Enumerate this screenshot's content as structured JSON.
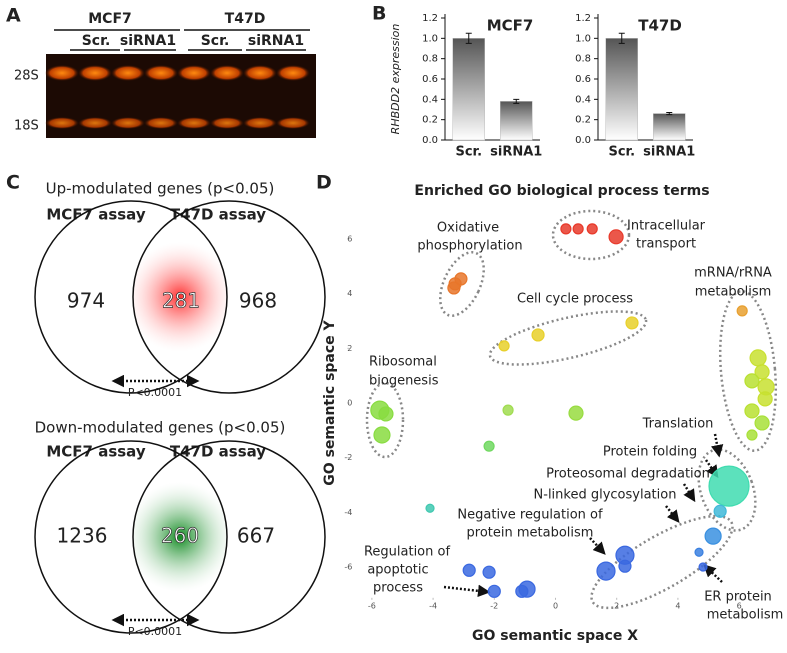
{
  "panels": {
    "letters": [
      "A",
      "B",
      "C",
      "D"
    ],
    "gel": {
      "groups": [
        "MCF7",
        "T47D"
      ],
      "lanes": [
        "Scr.",
        "siRNA1",
        "Scr.",
        "siRNA1"
      ],
      "bands": [
        "28S",
        "18S"
      ]
    },
    "venn": [
      {
        "title": "Up-modulated genes  (p<0.05)",
        "left": "MCF7 assay",
        "right": "T47D assay",
        "counts": [
          974,
          281,
          968
        ],
        "p": "P<0.0001"
      },
      {
        "title": "Down-modulated genes (p<0.05)",
        "left": "MCF7 assay",
        "right": "T47D assay",
        "counts": [
          1236,
          260,
          667
        ],
        "p": "P<0.0001"
      }
    ]
  },
  "chart_data": [
    {
      "type": "bar",
      "title": "MCF7",
      "ylabel": "RHBDD2 expression",
      "categories": [
        "Scr.",
        "siRNA1"
      ],
      "values": [
        1.0,
        0.38
      ],
      "errors": [
        0.05,
        0.02
      ],
      "ylim": [
        0,
        1.2
      ],
      "yticks": [
        {
          "value": 0,
          "label": "0.0"
        },
        0.2,
        0.4,
        0.6,
        0.8,
        {
          "value": 1,
          "label": "1.0"
        },
        1.2
      ]
    },
    {
      "type": "bar",
      "title": "T47D",
      "categories": [
        "Scr.",
        "siRNA1"
      ],
      "values": [
        1.0,
        0.26
      ],
      "errors": [
        0.05,
        0.01
      ],
      "ylim": [
        0,
        1.2
      ],
      "yticks": [
        {
          "value": 0,
          "label": "0.0"
        },
        0.2,
        0.4,
        0.6,
        0.8,
        {
          "value": 1,
          "label": "1.0"
        },
        1.2
      ]
    },
    {
      "type": "scatter",
      "title": "Enriched GO biological process terms",
      "xlabel": "GO semantic space X",
      "ylabel": "GO semantic space Y",
      "xlim": [
        -6.8,
        7.3
      ],
      "ylim": [
        -7.2,
        7.2
      ],
      "xticks": [
        -6,
        -4,
        -2,
        0,
        2,
        4,
        6
      ],
      "yticks": [
        -6,
        -4,
        -2,
        0,
        2,
        4,
        6
      ],
      "x": [
        0.34,
        0.74,
        1.2,
        1.98,
        -3.28,
        -3.09,
        -3.32,
        6.1,
        -1.68,
        -0.57,
        2.5,
        6.62,
        6.75,
        6.88,
        6.85,
        6.42,
        6.42,
        6.75,
        6.42,
        -5.74,
        -5.54,
        -5.67,
        -1.55,
        0.67,
        -2.17,
        -4.1,
        5.67,
        5.38,
        5.15,
        4.69,
        4.82,
        2.27,
        2.27,
        1.65,
        -2.82,
        -2.17,
        -2.0,
        -0.93,
        -1.1
      ],
      "values": [
        6.37,
        6.37,
        6.37,
        6.08,
        4.36,
        4.54,
        4.21,
        3.37,
        2.09,
        2.49,
        2.93,
        1.65,
        1.14,
        0.59,
        0.15,
        0.81,
        -0.29,
        -0.73,
        -1.17,
        -0.26,
        -0.4,
        -1.17,
        -0.26,
        -0.37,
        -1.58,
        -3.85,
        -3.04,
        -3.96,
        -4.87,
        -5.46,
        -6.0,
        -5.57,
        -5.97,
        -6.15,
        -6.12,
        -6.19,
        -6.89,
        -6.81,
        -6.89
      ],
      "sizes": [
        5,
        5,
        5,
        7,
        6,
        6,
        6,
        5,
        5,
        6,
        6,
        8,
        7,
        8,
        7,
        7,
        7,
        7,
        5,
        9,
        7,
        8,
        5,
        7,
        5,
        4,
        20,
        6,
        8,
        4,
        4,
        9,
        6,
        9,
        6,
        6,
        6,
        8,
        6
      ],
      "colors": [
        "#e8392a",
        "#e8392a",
        "#e8392a",
        "#e8392a",
        "#e8762a",
        "#e8762a",
        "#e8762a",
        "#e8a030",
        "#e8d02a",
        "#e8d02a",
        "#e8d02a",
        "#c8e030",
        "#c8e030",
        "#c8e030",
        "#c8e030",
        "#b8e030",
        "#b8e030",
        "#a8e038",
        "#a8e038",
        "#88dc40",
        "#88dc40",
        "#88dc40",
        "#a0dc50",
        "#98dc40",
        "#70d860",
        "#40c8b0",
        "#40dcb0",
        "#40b8d8",
        "#3a90e0",
        "#3a80e0",
        "#3a68e0",
        "#3a68e0",
        "#3a68e0",
        "#3a68e0",
        "#3a68e0",
        "#3a68e0",
        "#3a68e0",
        "#3a68e0",
        "#3a68e0"
      ],
      "annotations": [
        "Oxidative",
        "phosphorylation",
        "Intracellular",
        "transport",
        "mRNA/rRNA",
        "metabolism",
        "Cell cycle process",
        "Ribosomal",
        "biogenesis",
        "Translation",
        "Protein folding",
        "Proteosomal degradation",
        "N-linked glycosylation",
        "Negative regulation of",
        "protein metabolism",
        "Regulation of",
        "apoptotic",
        "process",
        "ER protein",
        "metabolism"
      ]
    }
  ]
}
